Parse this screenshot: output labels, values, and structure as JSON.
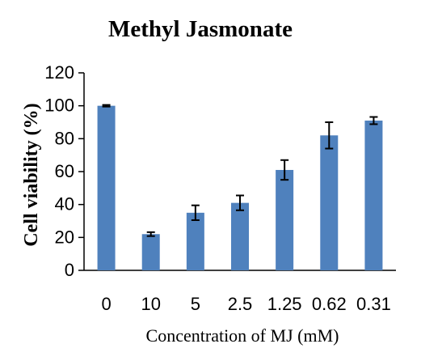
{
  "chart_data": {
    "type": "bar",
    "title": "Methyl Jasmonate",
    "xlabel": "Concentration of MJ (mM)",
    "ylabel": "Cell viability (%)",
    "categories": [
      "0",
      "10",
      "5",
      "2.5",
      "1.25",
      "0.62",
      "0.31"
    ],
    "values": [
      100,
      22,
      35,
      41,
      61,
      82,
      91
    ],
    "errors": [
      0.5,
      1.2,
      4.5,
      4.5,
      6,
      8,
      2.2
    ],
    "yticks": [
      "0",
      "20",
      "40",
      "60",
      "80",
      "100",
      "120"
    ],
    "ylim": [
      0,
      120
    ],
    "grid": false,
    "bar_color": "#4f81bd",
    "axis_color": "#000000"
  }
}
